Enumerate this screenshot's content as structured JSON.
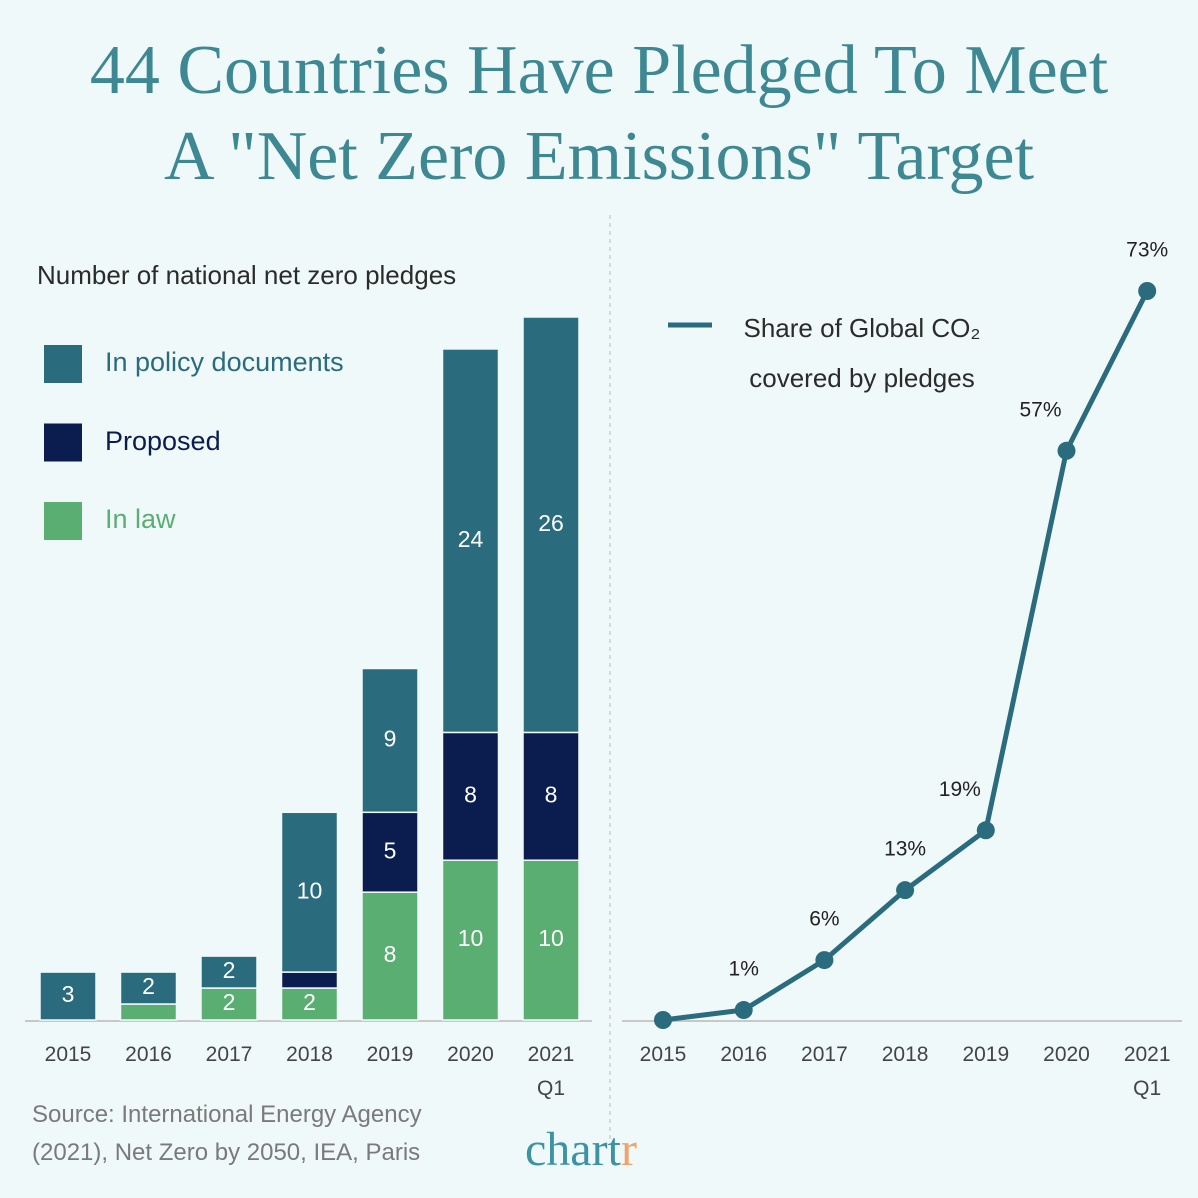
{
  "title": "44 Countries Have Pledged To Meet A \"Net Zero Emissions\" Target",
  "source": "Source: International Energy Agency (2021), Net Zero by 2050, IEA, Paris",
  "brand": "chartr",
  "chart_data": [
    {
      "type": "bar",
      "stacked": true,
      "subtitle": "Number of national net zero pledges",
      "categories": [
        "2015",
        "2016",
        "2017",
        "2018",
        "2019",
        "2020",
        "2021 Q1"
      ],
      "series": [
        {
          "name": "In law",
          "color": "#5aae72",
          "values": [
            0,
            1,
            2,
            2,
            8,
            10,
            10
          ],
          "value_labels": [
            null,
            null,
            "2",
            "2",
            "8",
            "10",
            "10"
          ]
        },
        {
          "name": "Proposed",
          "color": "#0b1c4e",
          "values": [
            0,
            0,
            0,
            1,
            5,
            8,
            8
          ],
          "value_labels": [
            null,
            null,
            null,
            null,
            "5",
            "8",
            "8"
          ]
        },
        {
          "name": "In policy documents",
          "color": "#2a6b7d",
          "values": [
            3,
            2,
            2,
            10,
            9,
            24,
            26
          ],
          "value_labels": [
            "3",
            "2",
            "2",
            "10",
            "9",
            "24",
            "26"
          ]
        }
      ],
      "ylim": [
        0,
        44
      ]
    },
    {
      "type": "line",
      "categories": [
        "2015",
        "2016",
        "2017",
        "2018",
        "2019",
        "2020",
        "2021 Q1"
      ],
      "series": [
        {
          "name": "Share of Global CO₂ covered by pledges",
          "color": "#2a6b7d",
          "values": [
            0,
            1,
            6,
            13,
            19,
            57,
            73
          ],
          "value_labels": [
            null,
            "1%",
            "6%",
            "13%",
            "19%",
            "57%",
            "73%"
          ]
        }
      ],
      "ylim": [
        0,
        73
      ]
    }
  ]
}
